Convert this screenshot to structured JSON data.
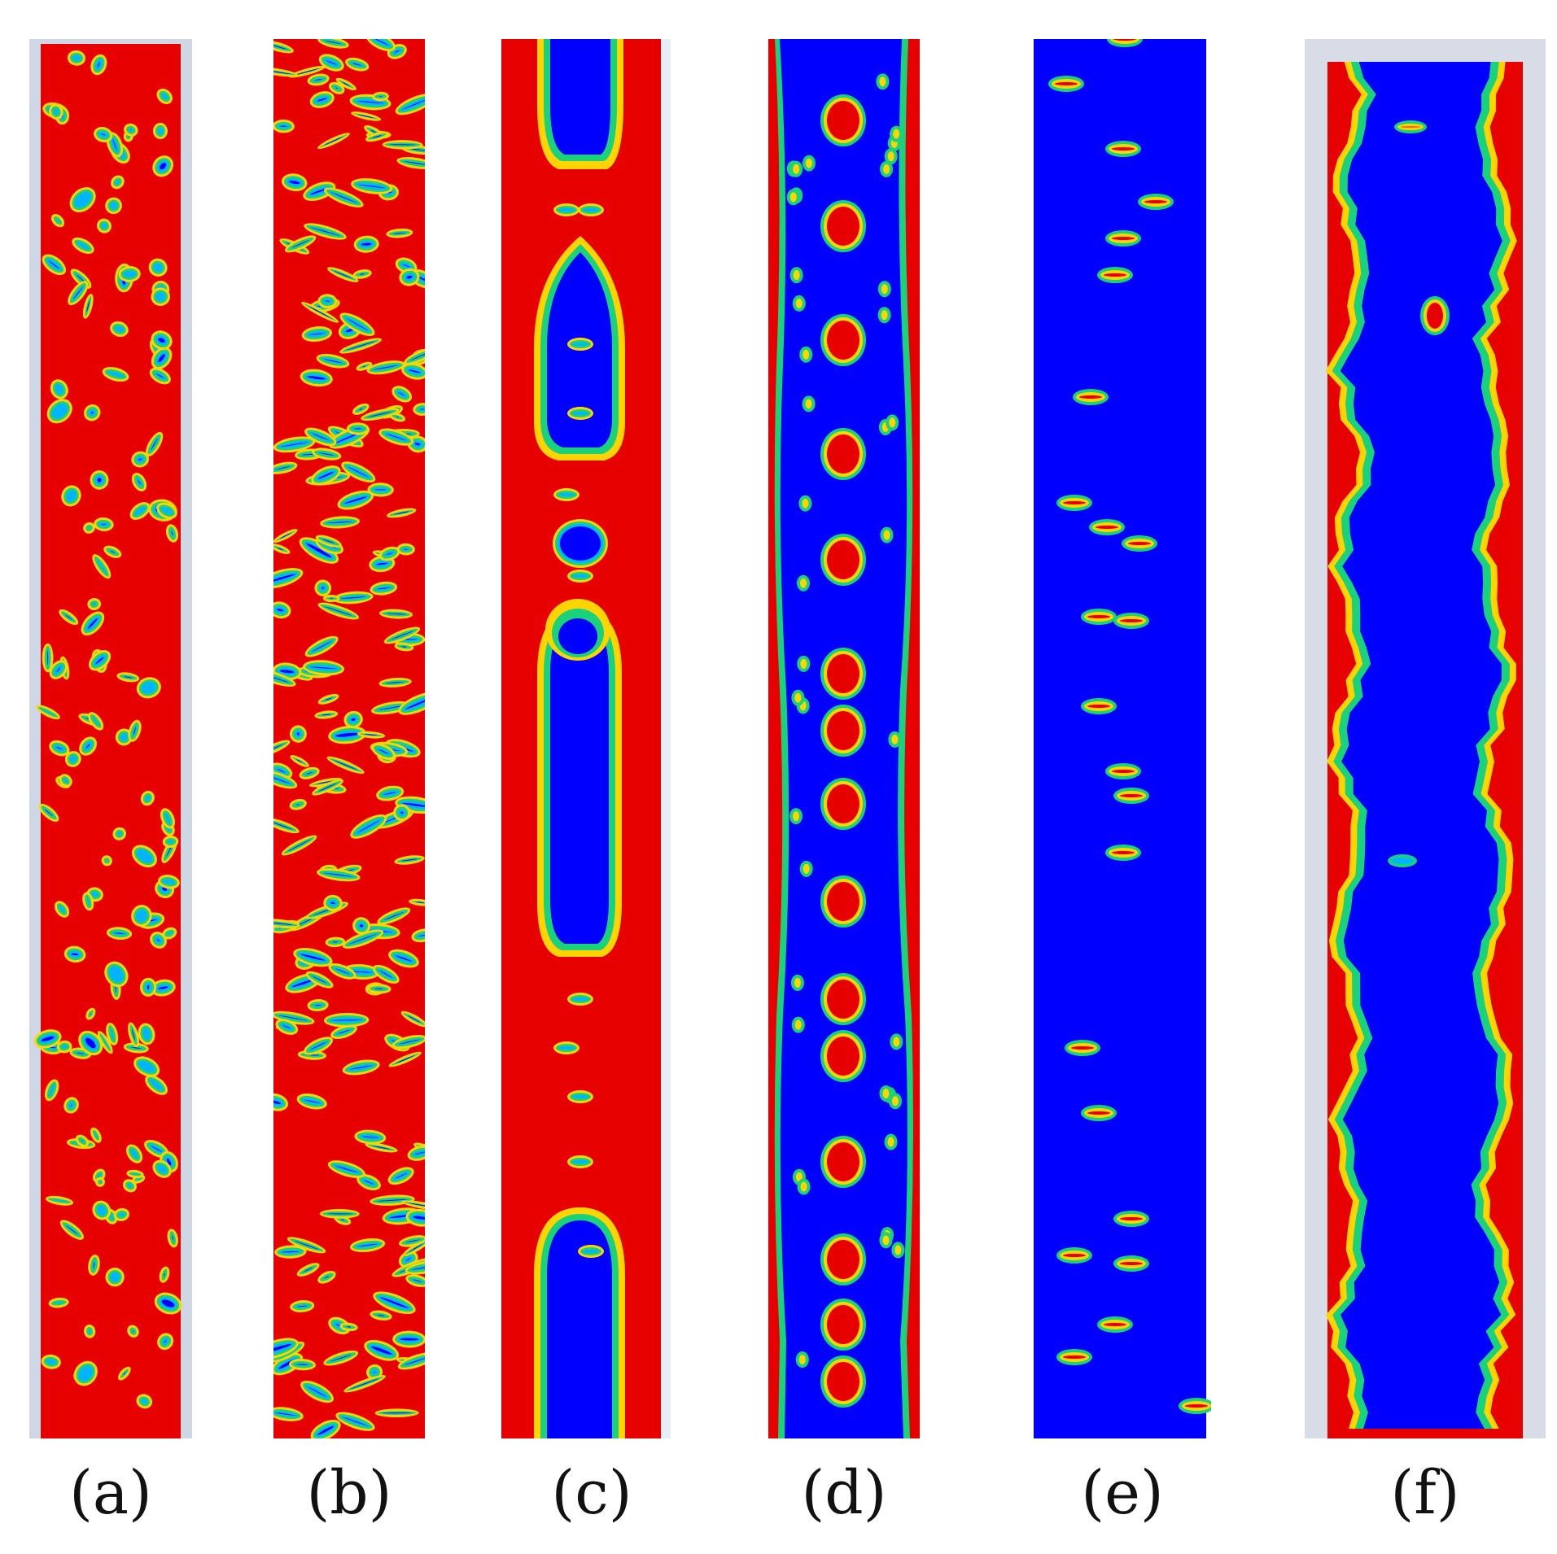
{
  "panels": [
    {
      "id": "a",
      "label": "(a)",
      "background": "#e60000",
      "blob_color": "#0000ff"
    },
    {
      "id": "b",
      "label": "(b)",
      "background": "#e60000",
      "blob_color": "#0000ff"
    },
    {
      "id": "c",
      "label": "(c)",
      "background": "#e60000",
      "blob_color": "#0000ff"
    },
    {
      "id": "d",
      "label": "(d)",
      "background": "#0000ff",
      "blob_color": "#e60000"
    },
    {
      "id": "e",
      "label": "(e)",
      "background": "#0000ff",
      "blob_color": "#e60000"
    },
    {
      "id": "f",
      "label": "(f)",
      "background": "#0000ff",
      "blob_color": "#e60000"
    }
  ]
}
